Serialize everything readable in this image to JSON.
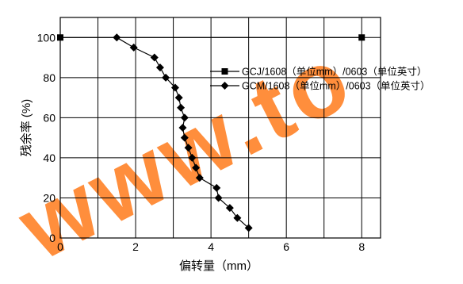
{
  "chart_data": {
    "type": "line",
    "xlabel": "偏转量（mm）",
    "ylabel": "残余率 (%)",
    "xlim": [
      0,
      8.5
    ],
    "ylim": [
      0,
      110
    ],
    "x_ticks": [
      "0",
      "2",
      "4",
      "6",
      "8"
    ],
    "y_ticks": [
      "0",
      "20",
      "40",
      "60",
      "80",
      "100"
    ],
    "grid": true,
    "legend_position": "right",
    "series": [
      {
        "name": "GCJ/1608（单位mm）/0603（单位英寸）",
        "marker": "square",
        "color": "#000000",
        "points": [
          [
            0,
            100
          ],
          [
            8,
            100
          ]
        ]
      },
      {
        "name": "GCM/1608（单位mm）/0603（单位英寸）",
        "marker": "diamond",
        "color": "#000000",
        "points": [
          [
            1.5,
            100
          ],
          [
            1.95,
            95
          ],
          [
            2.5,
            90
          ],
          [
            2.65,
            85
          ],
          [
            2.8,
            80
          ],
          [
            3.05,
            75
          ],
          [
            3.15,
            70
          ],
          [
            3.2,
            65
          ],
          [
            3.3,
            60
          ],
          [
            3.25,
            55
          ],
          [
            3.3,
            50
          ],
          [
            3.4,
            45
          ],
          [
            3.5,
            40
          ],
          [
            3.6,
            35
          ],
          [
            3.7,
            30
          ],
          [
            4.15,
            25
          ],
          [
            4.2,
            20
          ],
          [
            4.5,
            15
          ],
          [
            4.7,
            10
          ],
          [
            5.0,
            5
          ]
        ]
      }
    ],
    "watermark": "www.to"
  }
}
